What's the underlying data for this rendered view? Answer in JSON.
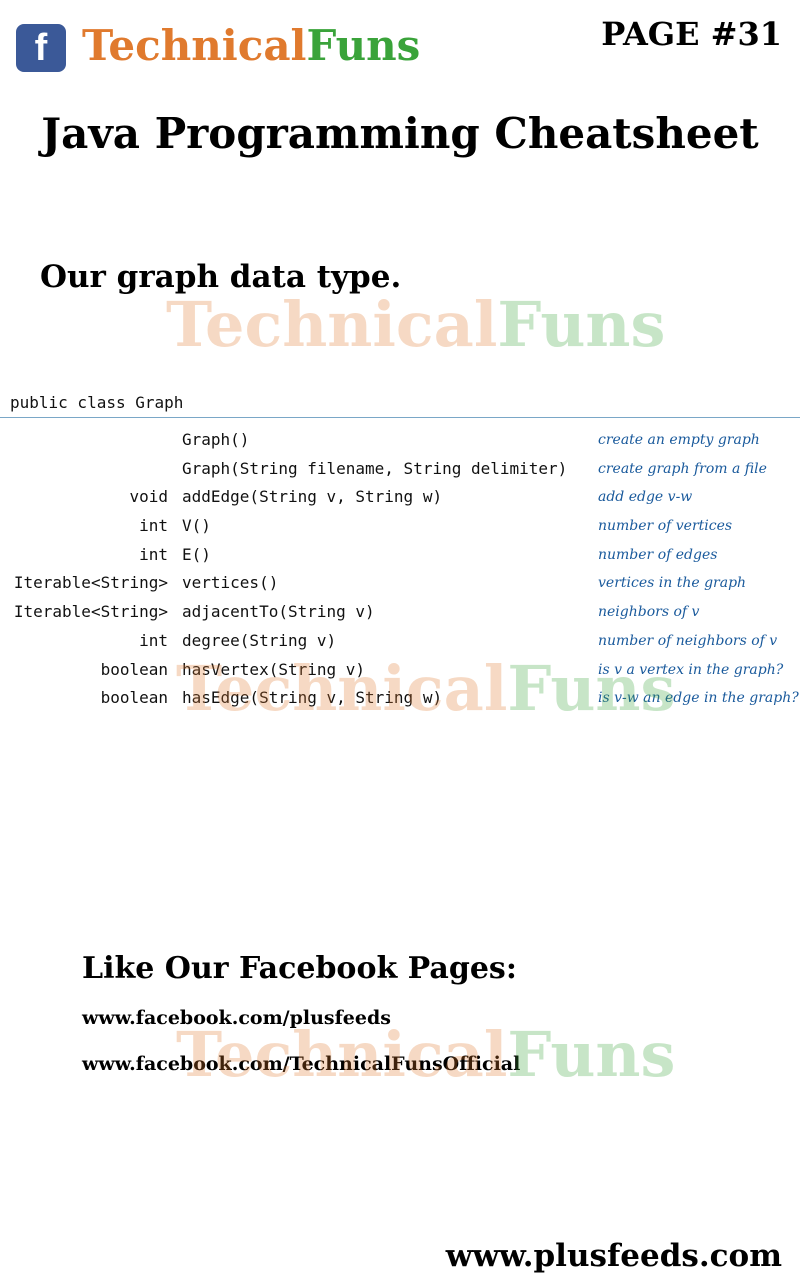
{
  "header": {
    "logo_glyph": "f",
    "brand_part1": "Technical",
    "brand_part2": "Funs",
    "page_number": "PAGE #31",
    "brand_colors": {
      "part1": "#e07a2e",
      "part2": "#3aa33a",
      "logo": "#3b5998"
    }
  },
  "title": "Java Programming Cheatsheet",
  "section_title": "Our graph data type.",
  "watermark": {
    "part1": "Technical",
    "part2": "Funs"
  },
  "api": {
    "header": "public class Graph",
    "rows": [
      {
        "ret": "",
        "sig": "Graph()",
        "desc": "create an empty graph"
      },
      {
        "ret": "",
        "sig": "Graph(String filename, String delimiter)",
        "desc": "create graph from a file"
      },
      {
        "ret": "void",
        "sig": "addEdge(String v, String w)",
        "desc": "add edge v-w"
      },
      {
        "ret": "int",
        "sig": "V()",
        "desc": "number of vertices"
      },
      {
        "ret": "int",
        "sig": "E()",
        "desc": "number of edges"
      },
      {
        "ret": "Iterable<String>",
        "sig": "vertices()",
        "desc": "vertices in the graph"
      },
      {
        "ret": "Iterable<String>",
        "sig": "adjacentTo(String v)",
        "desc": "neighbors of v"
      },
      {
        "ret": "int",
        "sig": "degree(String v)",
        "desc": "number of neighbors of v"
      },
      {
        "ret": "boolean",
        "sig": "hasVertex(String v)",
        "desc": "is v a vertex in the graph?"
      },
      {
        "ret": "boolean",
        "sig": "hasEdge(String v, String w)",
        "desc": "is v-w an edge in the graph?"
      }
    ]
  },
  "footer": {
    "like_title": "Like Our Facebook Pages:",
    "links": [
      "www.facebook.com/plusfeeds",
      "www.facebook.com/TechnicalFunsOfficial"
    ],
    "site": "www.plusfeeds.com"
  }
}
